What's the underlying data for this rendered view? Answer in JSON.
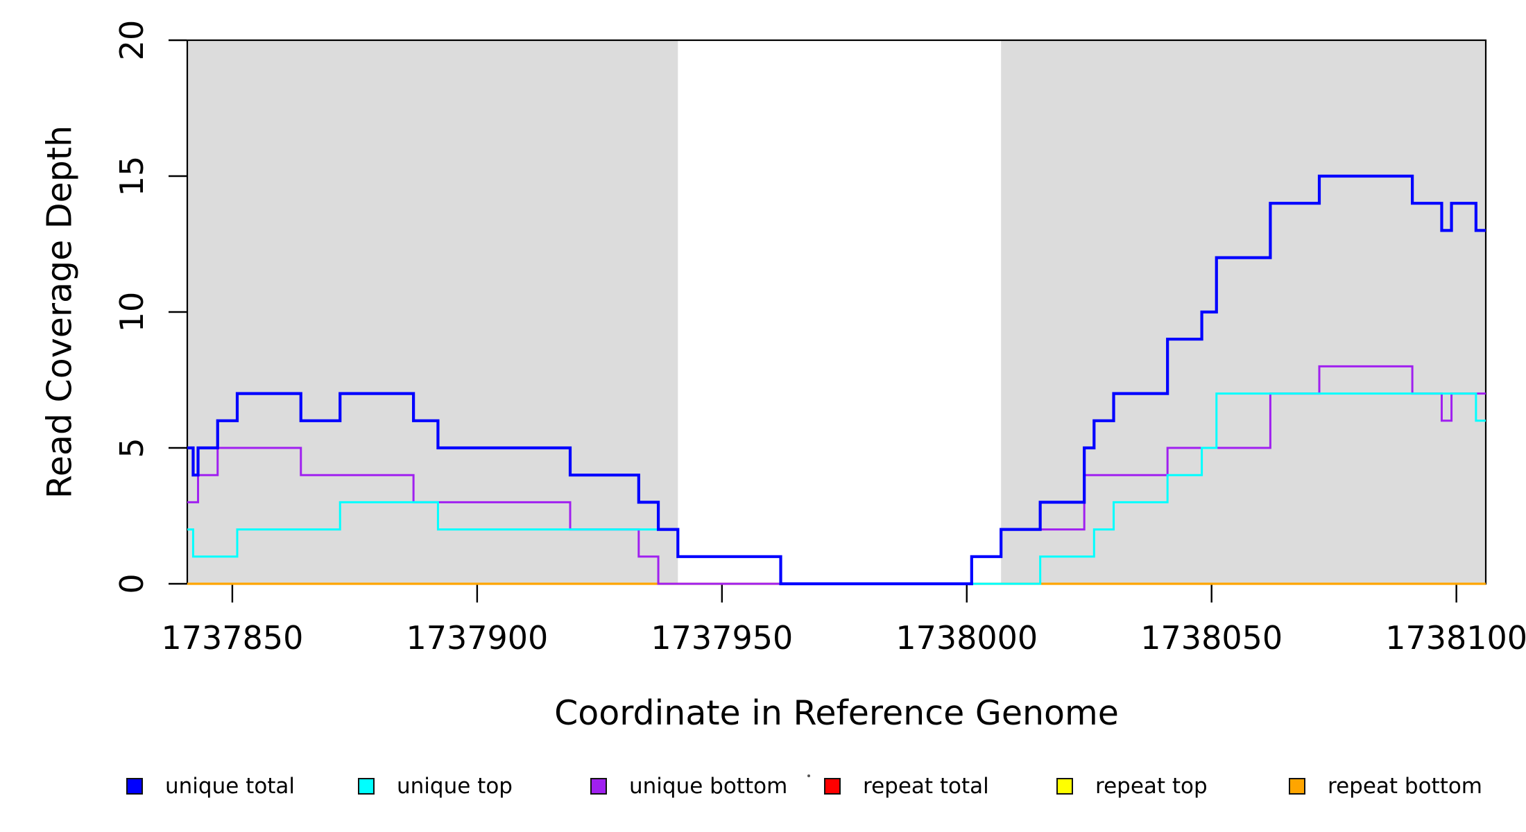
{
  "figure": {
    "x_axis_title": "Coordinate in Reference Genome",
    "y_axis_title": "Read Coverage Depth"
  },
  "legend": {
    "items": [
      {
        "label": "unique total",
        "color": "#0000FF"
      },
      {
        "label": "unique top",
        "color": "#00FFFF"
      },
      {
        "label": "unique bottom",
        "color": "#A020F0"
      },
      {
        "label": "repeat total",
        "color": "#FF0000"
      },
      {
        "label": "repeat top",
        "color": "#FFFF00"
      },
      {
        "label": "repeat bottom",
        "color": "#FFA500"
      }
    ]
  },
  "chart_data": {
    "type": "line",
    "subtype": "step",
    "title": "",
    "xlabel": "Coordinate in Reference Genome",
    "ylabel": "Read Coverage Depth",
    "xlim": [
      1737840.8,
      1738106
    ],
    "ylim": [
      0,
      20
    ],
    "x_ticks": [
      1737850,
      1737900,
      1737950,
      1738000,
      1738050,
      1738100
    ],
    "y_ticks": [
      0,
      5,
      10,
      15,
      20
    ],
    "grid": false,
    "legend_position": "bottom",
    "background_color": "#FFFFFF",
    "shading_color": "#DCDCDC",
    "shaded_regions": [
      {
        "label": "unique-region-left",
        "x0": 1737840.8,
        "x1": 1737941
      },
      {
        "label": "unique-region-right",
        "x0": 1738007,
        "x1": 1738106
      }
    ],
    "series": [
      {
        "name": "unique total",
        "color": "#0000FF",
        "steps": [
          [
            1737840.8,
            5
          ],
          [
            1737842,
            4
          ],
          [
            1737843,
            5
          ],
          [
            1737847,
            6
          ],
          [
            1737851,
            7
          ],
          [
            1737864,
            6
          ],
          [
            1737872,
            7
          ],
          [
            1737887,
            6
          ],
          [
            1737892,
            5
          ],
          [
            1737919,
            4
          ],
          [
            1737933,
            3
          ],
          [
            1737937,
            2
          ],
          [
            1737941,
            1
          ],
          [
            1737962,
            0
          ],
          [
            1738001,
            1
          ],
          [
            1738007,
            2
          ],
          [
            1738015,
            3
          ],
          [
            1738024,
            5
          ],
          [
            1738026,
            6
          ],
          [
            1738030,
            7
          ],
          [
            1738041,
            9
          ],
          [
            1738048,
            10
          ],
          [
            1738051,
            12
          ],
          [
            1738062,
            14
          ],
          [
            1738072,
            15
          ],
          [
            1738091,
            14
          ],
          [
            1738097,
            13
          ],
          [
            1738099,
            14
          ],
          [
            1738104,
            13
          ],
          [
            1738106,
            13
          ]
        ]
      },
      {
        "name": "unique top",
        "color": "#00FFFF",
        "steps": [
          [
            1737840.8,
            2
          ],
          [
            1737842,
            1
          ],
          [
            1737851,
            2
          ],
          [
            1737872,
            3
          ],
          [
            1737892,
            2
          ],
          [
            1737941,
            1
          ],
          [
            1737962,
            0
          ],
          [
            1738015,
            1
          ],
          [
            1738026,
            2
          ],
          [
            1738030,
            3
          ],
          [
            1738041,
            4
          ],
          [
            1738048,
            5
          ],
          [
            1738051,
            7
          ],
          [
            1738104,
            6
          ],
          [
            1738106,
            6
          ]
        ]
      },
      {
        "name": "unique bottom",
        "color": "#A020F0",
        "steps": [
          [
            1737840.8,
            3
          ],
          [
            1737843,
            4
          ],
          [
            1737847,
            5
          ],
          [
            1737864,
            4
          ],
          [
            1737887,
            3
          ],
          [
            1737919,
            2
          ],
          [
            1737933,
            1
          ],
          [
            1737937,
            0
          ],
          [
            1738001,
            1
          ],
          [
            1738007,
            2
          ],
          [
            1738024,
            4
          ],
          [
            1738041,
            5
          ],
          [
            1738062,
            7
          ],
          [
            1738072,
            8
          ],
          [
            1738091,
            7
          ],
          [
            1738097,
            6
          ],
          [
            1738099,
            7
          ],
          [
            1738106,
            7
          ]
        ]
      },
      {
        "name": "repeat total",
        "color": "#FF0000",
        "steps": [
          [
            1737840.8,
            0
          ],
          [
            1738106,
            0
          ]
        ]
      },
      {
        "name": "repeat top",
        "color": "#FFFF00",
        "steps": [
          [
            1737840.8,
            0
          ],
          [
            1738106,
            0
          ]
        ]
      },
      {
        "name": "repeat bottom",
        "color": "#FFA500",
        "steps": [
          [
            1737840.8,
            0
          ],
          [
            1738106,
            0
          ]
        ]
      }
    ]
  }
}
